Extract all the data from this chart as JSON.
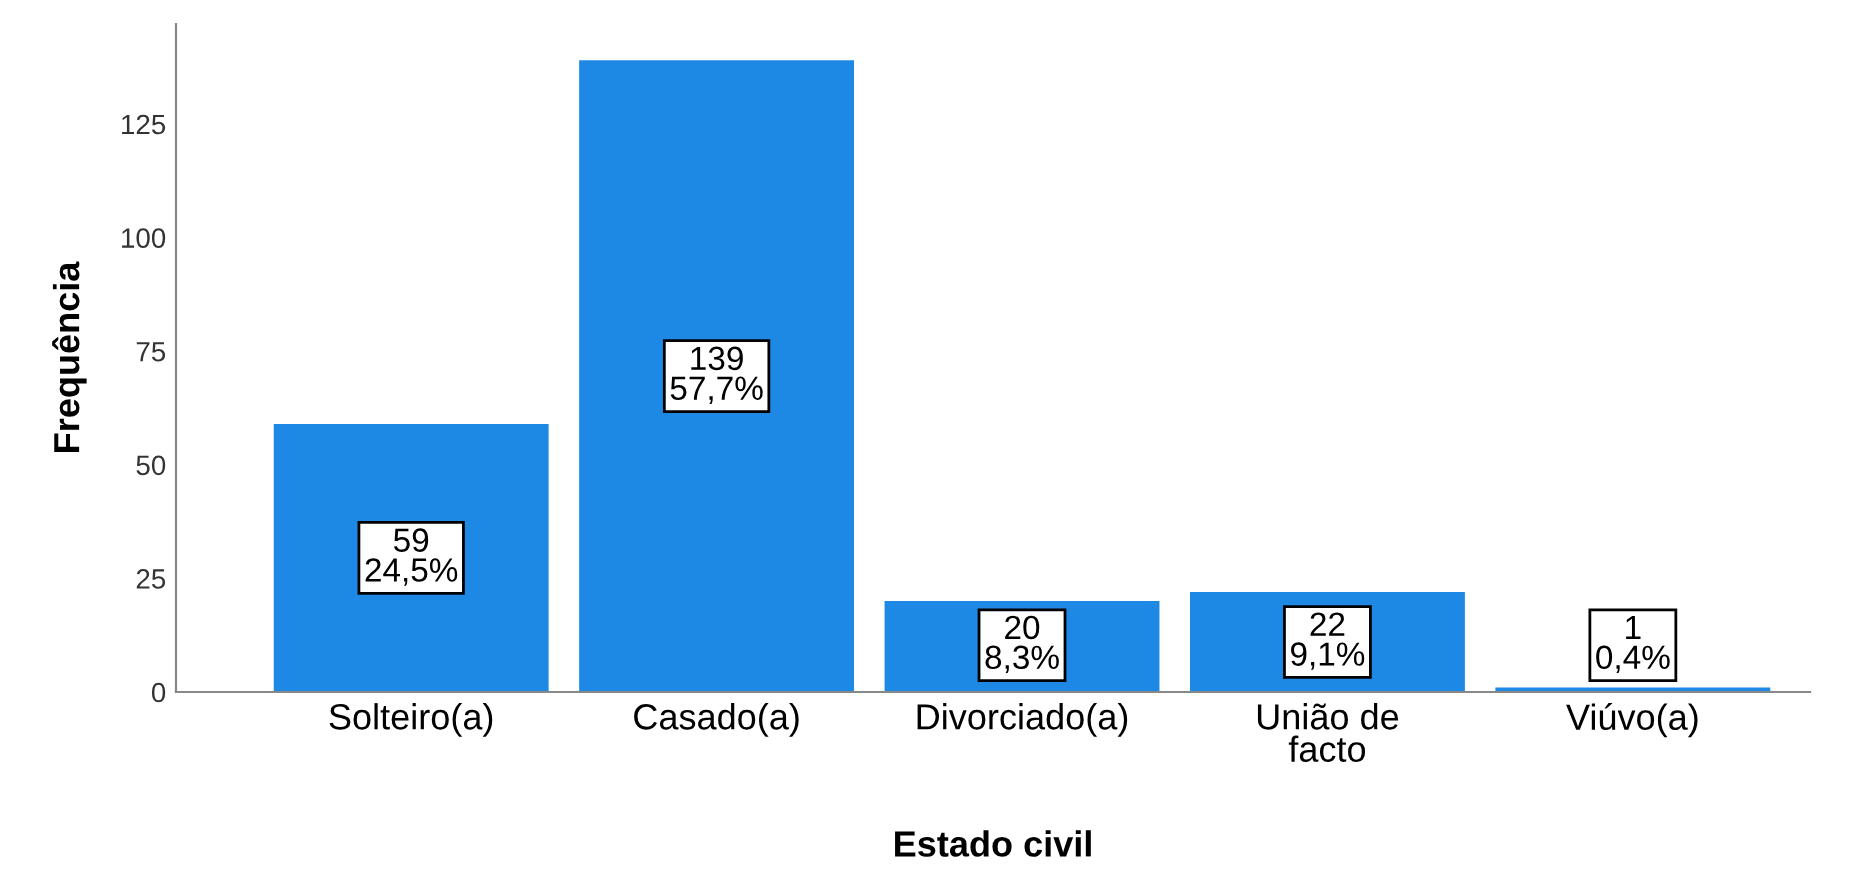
{
  "chart_data": {
    "type": "bar",
    "xlabel": "Estado civil",
    "ylabel": "Frequência",
    "categories": [
      "Solteiro(a)",
      "Casado(a)",
      "Divorciado(a)",
      "União de\nfacto",
      "Viúvo(a)"
    ],
    "values": [
      59,
      139,
      20,
      22,
      1
    ],
    "value_labels": [
      "59\n24,5%",
      "139\n57,7%",
      "20\n8,3%",
      "22\n9,1%",
      "1\n0,4%"
    ],
    "color": "#1e88e5",
    "ylim": [
      0,
      147
    ],
    "yticks": [
      0,
      25,
      50,
      75,
      100,
      125
    ],
    "grid": false,
    "legend": false
  }
}
